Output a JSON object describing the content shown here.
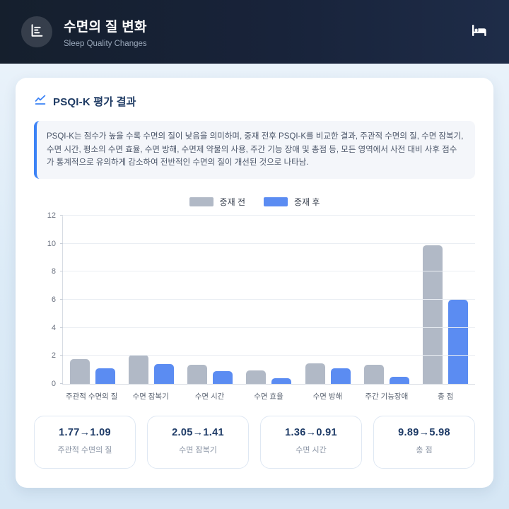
{
  "header": {
    "title": "수면의 질 변화",
    "subtitle": "Sleep Quality Changes",
    "left_icon": "bar-chart-icon",
    "right_icon": "bed-icon"
  },
  "card": {
    "title": "PSQI-K 평가 결과",
    "title_icon": "line-chart-icon",
    "description": "PSQI-K는 점수가 높을 수록 수면의 질이 낮음을 의미하며, 중재 전후 PSQI-K를 비교한 결과, 주관적 수면의 질, 수면 잠복기, 수면 시간, 평소의 수면 효율, 수면 방해, 수면제 약물의 사용, 주간 기능 장애 및 총점 등, 모든 영역에서 사전 대비 사후 점수가 통계적으로 유의하게 감소하여 전반적인 수면의 질이 개선된 것으로 나타남."
  },
  "chart_data": {
    "type": "bar",
    "categories": [
      "주관적 수면의 질",
      "수면 잠복기",
      "수면 시간",
      "수면 효율",
      "수면 방해",
      "주간 기능장애",
      "총 점"
    ],
    "series": [
      {
        "name": "중재 전",
        "color": "#b1b9c6",
        "values": [
          1.77,
          2.05,
          1.36,
          0.95,
          1.45,
          1.36,
          9.89
        ]
      },
      {
        "name": "중재 후",
        "color": "#5b8cf2",
        "values": [
          1.09,
          1.41,
          0.91,
          0.41,
          1.09,
          0.5,
          5.98
        ]
      }
    ],
    "ylim": [
      0,
      12
    ],
    "ytick_step": 2,
    "grid": true,
    "legend_position": "top-center"
  },
  "stats": [
    {
      "value": "1.77→1.09",
      "label": "주관적 수면의 질"
    },
    {
      "value": "2.05→1.41",
      "label": "수면 잠복기"
    },
    {
      "value": "1.36→0.91",
      "label": "수면 시간"
    },
    {
      "value": "9.89→5.98",
      "label": "총 점"
    }
  ],
  "colors": {
    "header_bg_start": "#151f2d",
    "header_bg_end": "#1e2c48",
    "accent_blue": "#3b82f6",
    "bar_before": "#b1b9c6",
    "bar_after": "#5b8cf2",
    "stat_value_text": "#1d3a66",
    "page_bg": "#dcebf7"
  }
}
